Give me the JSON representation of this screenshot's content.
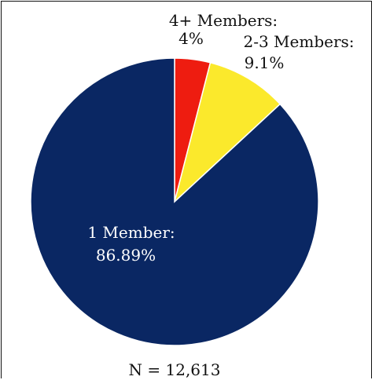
{
  "chart_data": {
    "type": "pie",
    "title": "",
    "slices": [
      {
        "label": "4+ Members:",
        "value_label": "4%",
        "value": 4.0,
        "color": "#ee1c10"
      },
      {
        "label": "2-3 Members:",
        "value_label": "9.1%",
        "value": 9.1,
        "color": "#fbe92c"
      },
      {
        "label": "1 Member:",
        "value_label": "86.89%",
        "value": 86.89,
        "color": "#0a2763"
      }
    ],
    "start_angle_deg": 0,
    "direction": "clockwise",
    "annotation": "N = 12,613"
  }
}
